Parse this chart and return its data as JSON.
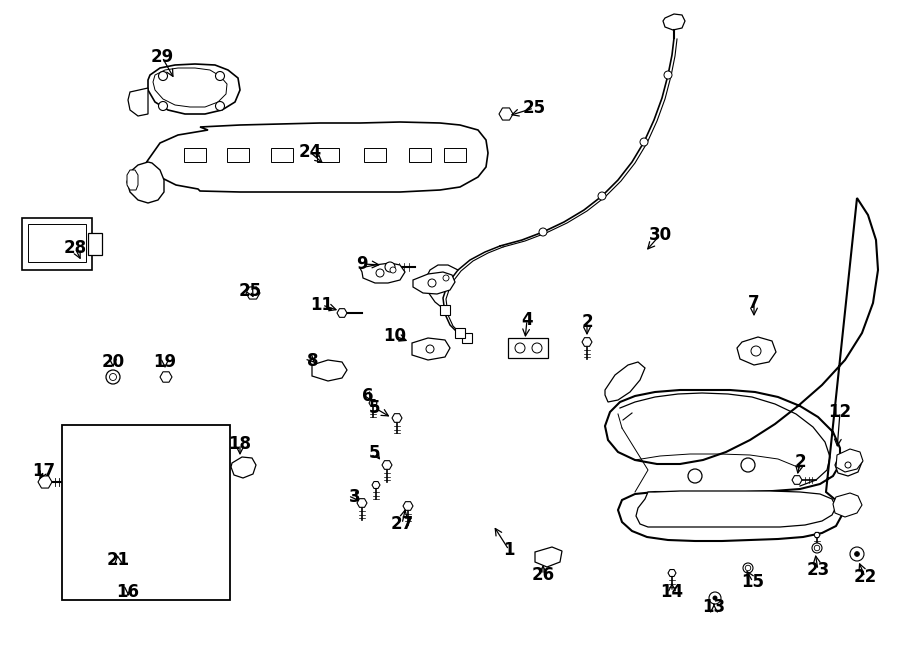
{
  "bg_color": "#ffffff",
  "line_color": "#000000",
  "figsize": [
    9.0,
    6.61
  ],
  "dpi": 100,
  "xlim": [
    0,
    900
  ],
  "ylim": [
    0,
    661
  ]
}
